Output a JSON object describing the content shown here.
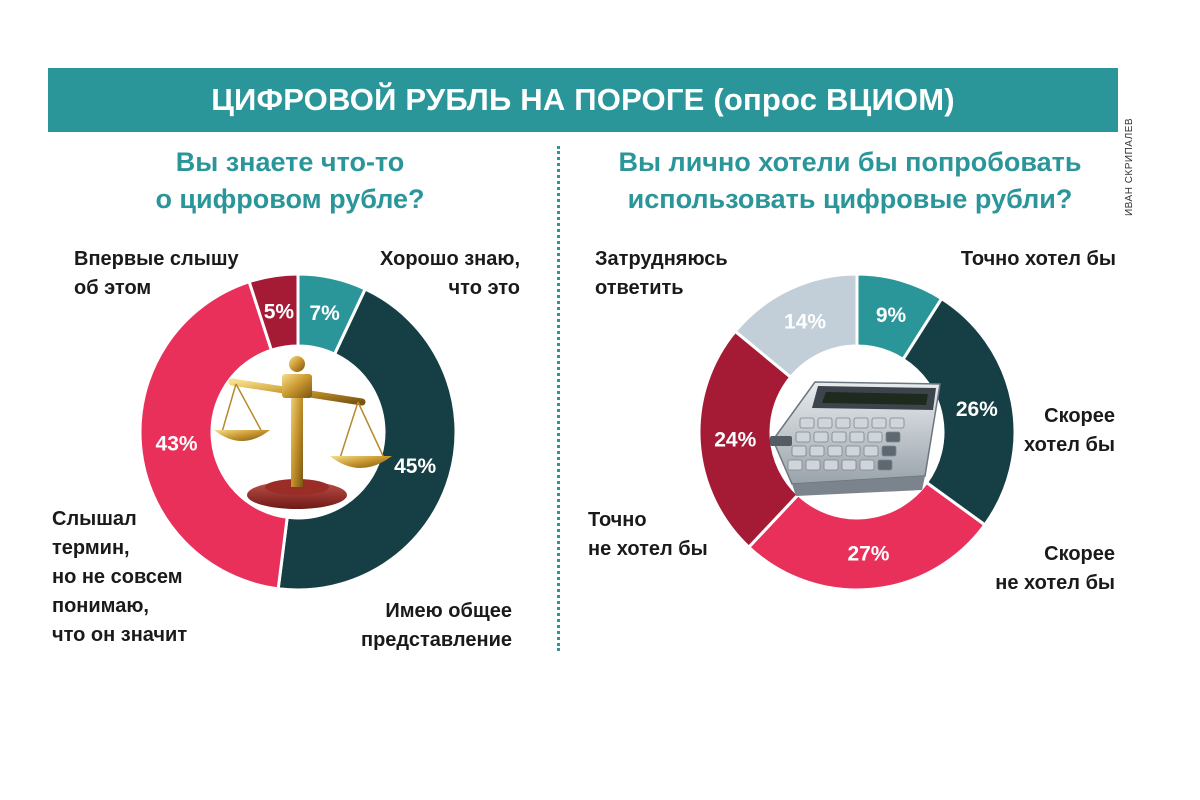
{
  "header": {
    "title": "ЦИФРОВОЙ РУБЛЬ НА ПОРОГЕ (опрос ВЦИОМ)",
    "credit": "ИВАН СКРИПАЛЕВ"
  },
  "colors": {
    "teal": "#2b969a",
    "dark_teal": "#163f45",
    "pink": "#e8305a",
    "dark_red": "#a51b35",
    "light_gray": "#c2cfd8"
  },
  "chart_data": [
    {
      "type": "pie",
      "donut": true,
      "title": "Вы знаете что-то о цифровом рубле?",
      "title_lines": [
        "Вы знаете что-то",
        "о цифровом рубле?"
      ],
      "center_icon": "scales-of-justice-icon",
      "slices": [
        {
          "label_lines": [
            "Хорошо знаю,",
            "что это"
          ],
          "value": 7,
          "value_label": "7%",
          "color": "#2b969a"
        },
        {
          "label_lines": [
            "Имею общее",
            "представление"
          ],
          "value": 45,
          "value_label": "45%",
          "color": "#163f45"
        },
        {
          "label_lines": [
            "Слышал",
            "термин,",
            "но не совсем",
            "понимаю,",
            "что он значит"
          ],
          "value": 43,
          "value_label": "43%",
          "color": "#e8305a"
        },
        {
          "label_lines": [
            "Впервые слышу",
            "об этом"
          ],
          "value": 5,
          "value_label": "5%",
          "color": "#a51b35"
        }
      ]
    },
    {
      "type": "pie",
      "donut": true,
      "title": "Вы лично хотели бы попробовать использовать цифровые рубли?",
      "title_lines": [
        "Вы лично хотели бы попробовать",
        "использовать цифровые рубли?"
      ],
      "center_icon": "calculator-icon",
      "slices": [
        {
          "label_lines": [
            "Точно хотел бы"
          ],
          "value": 9,
          "value_label": "9%",
          "color": "#2b969a"
        },
        {
          "label_lines": [
            "Скорее",
            "хотел бы"
          ],
          "value": 26,
          "value_label": "26%",
          "color": "#163f45"
        },
        {
          "label_lines": [
            "Скорее",
            "не хотел бы"
          ],
          "value": 27,
          "value_label": "27%",
          "color": "#e8305a"
        },
        {
          "label_lines": [
            "Точно",
            "не хотел бы"
          ],
          "value": 24,
          "value_label": "24%",
          "color": "#a51b35"
        },
        {
          "label_lines": [
            "Затрудняюсь",
            "ответить"
          ],
          "value": 14,
          "value_label": "14%",
          "color": "#c2cfd8"
        }
      ]
    }
  ]
}
